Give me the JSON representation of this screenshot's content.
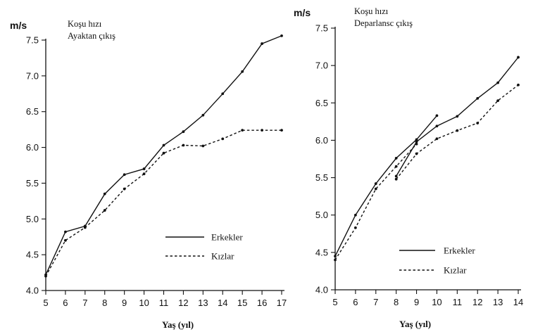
{
  "colors": {
    "ink": "#111111",
    "background": "#ffffff"
  },
  "chart_data": [
    {
      "type": "line",
      "title_lines": [
        "Koşu hızı",
        "Ayaktan çıkış"
      ],
      "ylabel": "m/s",
      "xlabel": "Yaş (yıl)",
      "xlim": [
        5,
        17
      ],
      "ylim": [
        4.0,
        7.5
      ],
      "xticks": [
        "5",
        "6",
        "7",
        "8",
        "9",
        "10",
        "11",
        "12",
        "13",
        "14",
        "15",
        "16",
        "17"
      ],
      "yticks": [
        "4.0",
        "4.5",
        "5.0",
        "5.5",
        "6.0",
        "6.5",
        "7.0",
        "7.5"
      ],
      "legend_position": "bottom-right",
      "series": [
        {
          "name": "Erkekler",
          "style": "solid",
          "points": [
            {
              "x": 5,
              "y": 4.22
            },
            {
              "x": 6,
              "y": 4.82
            },
            {
              "x": 7,
              "y": 4.9
            },
            {
              "x": 8,
              "y": 5.35
            },
            {
              "x": 9,
              "y": 5.62
            },
            {
              "x": 10,
              "y": 5.7
            },
            {
              "x": 11,
              "y": 6.03
            },
            {
              "x": 12,
              "y": 6.22
            },
            {
              "x": 13,
              "y": 6.45
            },
            {
              "x": 14,
              "y": 6.75
            },
            {
              "x": 15,
              "y": 7.06
            },
            {
              "x": 16,
              "y": 7.45
            },
            {
              "x": 17,
              "y": 7.56
            }
          ]
        },
        {
          "name": "Kızlar",
          "style": "dashed",
          "points": [
            {
              "x": 5,
              "y": 4.2
            },
            {
              "x": 6,
              "y": 4.7
            },
            {
              "x": 7,
              "y": 4.88
            },
            {
              "x": 8,
              "y": 5.12
            },
            {
              "x": 9,
              "y": 5.42
            },
            {
              "x": 10,
              "y": 5.63
            },
            {
              "x": 11,
              "y": 5.92
            },
            {
              "x": 12,
              "y": 6.03
            },
            {
              "x": 13,
              "y": 6.02
            },
            {
              "x": 14,
              "y": 6.12
            },
            {
              "x": 15,
              "y": 6.24
            },
            {
              "x": 16,
              "y": 6.24
            },
            {
              "x": 17,
              "y": 6.24
            }
          ]
        }
      ]
    },
    {
      "type": "line",
      "title_lines": [
        "Koşu hızı",
        "Deparlansc çıkış"
      ],
      "ylabel": "m/s",
      "xlabel": "Yaş (yıl)",
      "xlim": [
        5,
        14
      ],
      "ylim": [
        4.0,
        7.5
      ],
      "xticks": [
        "5",
        "6",
        "7",
        "8",
        "9",
        "10",
        "11",
        "12",
        "13",
        "14"
      ],
      "yticks": [
        "4.0",
        "4.5",
        "5.0",
        "5.5",
        "6.0",
        "6.5",
        "7.0",
        "7.5"
      ],
      "legend_position": "bottom-right",
      "series": [
        {
          "name": "Erkekler",
          "style": "solid",
          "segments": [
            [
              {
                "x": 5,
                "y": 4.45
              },
              {
                "x": 6,
                "y": 5.0
              },
              {
                "x": 7,
                "y": 5.42
              },
              {
                "x": 8,
                "y": 5.76
              },
              {
                "x": 9,
                "y": 6.01
              },
              {
                "x": 10,
                "y": 6.33
              }
            ],
            [
              {
                "x": 8,
                "y": 5.52
              },
              {
                "x": 9,
                "y": 5.98
              },
              {
                "x": 10,
                "y": 6.19
              },
              {
                "x": 11,
                "y": 6.32
              },
              {
                "x": 12,
                "y": 6.56
              },
              {
                "x": 13,
                "y": 6.77
              },
              {
                "x": 14,
                "y": 7.11
              }
            ]
          ]
        },
        {
          "name": "Kızlar",
          "style": "dashed",
          "segments": [
            [
              {
                "x": 5,
                "y": 4.4
              },
              {
                "x": 6,
                "y": 4.83
              },
              {
                "x": 7,
                "y": 5.35
              },
              {
                "x": 8,
                "y": 5.65
              },
              {
                "x": 9,
                "y": 5.95
              }
            ],
            [
              {
                "x": 8,
                "y": 5.48
              },
              {
                "x": 9,
                "y": 5.82
              },
              {
                "x": 10,
                "y": 6.02
              },
              {
                "x": 11,
                "y": 6.13
              },
              {
                "x": 12,
                "y": 6.23
              },
              {
                "x": 13,
                "y": 6.53
              },
              {
                "x": 14,
                "y": 6.74
              }
            ]
          ]
        }
      ]
    }
  ]
}
